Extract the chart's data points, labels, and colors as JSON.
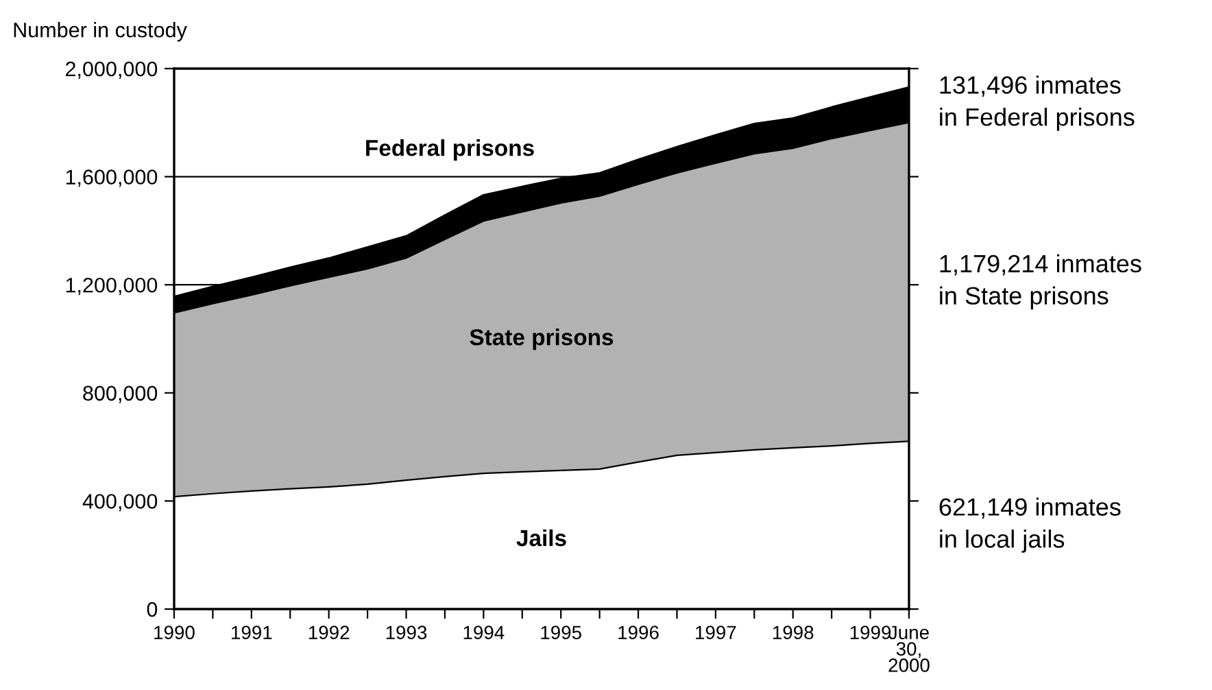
{
  "chart_data": {
    "type": "area",
    "stacked": true,
    "ylabel": "Number in custody",
    "categories": [
      "1990",
      null,
      "1991",
      null,
      "1992",
      null,
      "1993",
      null,
      "1994",
      null,
      "1995",
      null,
      "1996",
      null,
      "1997",
      null,
      "1998",
      null,
      "1999",
      "June 30,\n2000"
    ],
    "series": [
      {
        "name": "Jails",
        "color": "#ffffff",
        "values": [
          416000,
          427000,
          437000,
          445000,
          452000,
          462000,
          477000,
          490000,
          502000,
          508000,
          513000,
          518000,
          544000,
          569000,
          579000,
          589000,
          597000,
          604000,
          613000,
          621149
        ]
      },
      {
        "name": "State prisons",
        "color": "#b2b2b2",
        "values": [
          680000,
          703000,
          725000,
          751000,
          776000,
          797000,
          822000,
          878000,
          934000,
          962000,
          990000,
          1010000,
          1028000,
          1045000,
          1071000,
          1096000,
          1108000,
          1137000,
          1158000,
          1179214
        ]
      },
      {
        "name": "Federal prisons",
        "color": "#000000",
        "values": [
          61000,
          64000,
          66000,
          69000,
          71000,
          81000,
          82000,
          90000,
          97000,
          94000,
          91000,
          86000,
          92000,
          97000,
          105000,
          112000,
          112000,
          117000,
          124000,
          131496
        ]
      }
    ],
    "ylim": [
      0,
      2000000
    ],
    "yticks": [
      {
        "value": 0,
        "label": "0"
      },
      {
        "value": 400000,
        "label": "400,000"
      },
      {
        "value": 800000,
        "label": "800,000"
      },
      {
        "value": 1200000,
        "label": "1,200,000"
      },
      {
        "value": 1600000,
        "label": "1,600,000"
      },
      {
        "value": 2000000,
        "label": "2,000,000"
      }
    ],
    "grid": "y",
    "legend": false,
    "annotations": [
      "131,496 inmates\nin Federal prisons",
      "1,179,214 inmates\nin State prisons",
      "621,149 inmates\nin local jails"
    ]
  }
}
